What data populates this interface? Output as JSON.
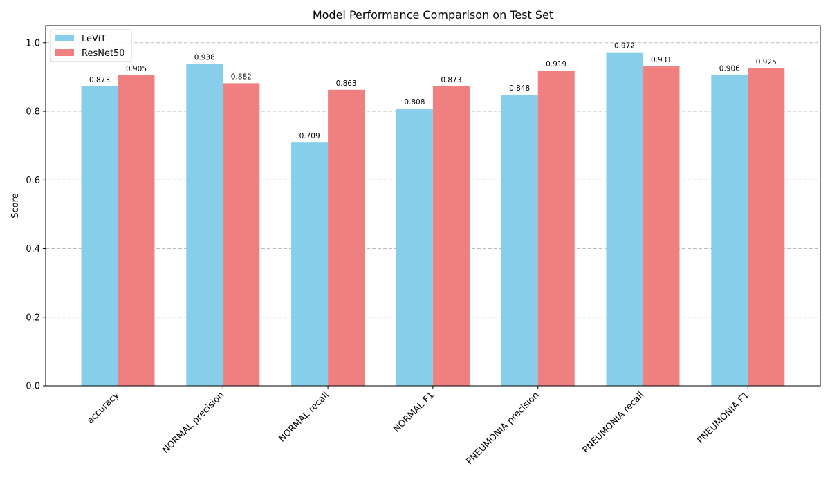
{
  "chart_data": {
    "type": "bar",
    "title": "Model Performance Comparison on Test Set",
    "xlabel": "",
    "ylabel": "Score",
    "ylim": [
      0,
      1.05
    ],
    "yticks": [
      0.0,
      0.2,
      0.4,
      0.6,
      0.8,
      1.0
    ],
    "ytick_labels": [
      "0.0",
      "0.2",
      "0.4",
      "0.6",
      "0.8",
      "1.0"
    ],
    "grid": "y-dashed",
    "legend_position": "top-left",
    "categories": [
      "accuracy",
      "NORMAL precision",
      "NORMAL recall",
      "NORMAL F1",
      "PNEUMONIA precision",
      "PNEUMONIA recall",
      "PNEUMONIA F1"
    ],
    "series": [
      {
        "name": "LeViT",
        "color": "#87ceeb",
        "values": [
          0.873,
          0.938,
          0.709,
          0.808,
          0.848,
          0.972,
          0.906
        ],
        "labels": [
          "0.873",
          "0.938",
          "0.709",
          "0.808",
          "0.848",
          "0.972",
          "0.906"
        ]
      },
      {
        "name": "ResNet50",
        "color": "#f08080",
        "values": [
          0.905,
          0.882,
          0.863,
          0.873,
          0.919,
          0.931,
          0.925
        ],
        "labels": [
          "0.905",
          "0.882",
          "0.863",
          "0.873",
          "0.919",
          "0.931",
          "0.925"
        ]
      }
    ]
  }
}
